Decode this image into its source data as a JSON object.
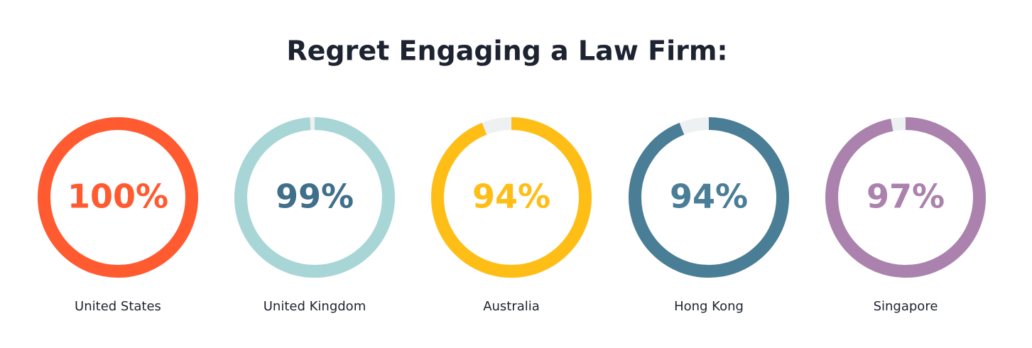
{
  "chart_data": {
    "type": "gauge",
    "title": "Regret Engaging a Law Firm:",
    "categories": [
      "United States",
      "United Kingdom",
      "Australia",
      "Hong Kong",
      "Singapore"
    ],
    "values": [
      100,
      99,
      94,
      94,
      97
    ],
    "value_labels": [
      "100%",
      "99%",
      "94%",
      "94%",
      "97%"
    ],
    "ylim": [
      0,
      100
    ],
    "colors": [
      "#ff5a30",
      "#a8d5d6",
      "#ffbe16",
      "#4a7d96",
      "#ab82ad"
    ],
    "label_colors": [
      "#ff5a30",
      "#3f6f8a",
      "#ffbe16",
      "#4a7d96",
      "#ab82ad"
    ],
    "track_color": "#eef1f1"
  }
}
